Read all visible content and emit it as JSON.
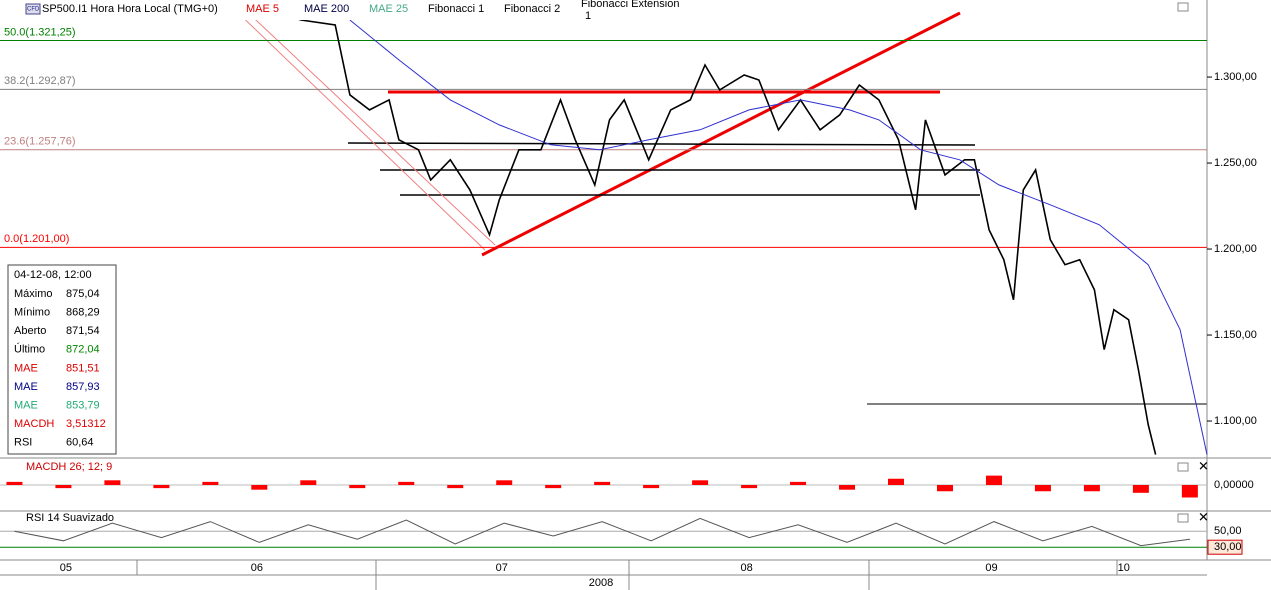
{
  "toolbar": {
    "symbol": "CFD",
    "title": "SP500.I1 Hora Hora Local (TMG+0)",
    "items": [
      "MAE 5",
      "MAE 200",
      "MAE 25",
      "Fibonacci 1",
      "Fibonacci 2",
      "Fibonacci Extension",
      "1"
    ]
  },
  "info_panel": {
    "header": "04-12-08, 12:00",
    "rows": [
      {
        "label": "Máximo",
        "value": "875,04"
      },
      {
        "label": "Mínimo",
        "value": "868,29"
      },
      {
        "label": "Aberto",
        "value": "871,54"
      },
      {
        "label": "Último",
        "value": "872,04"
      },
      {
        "label": "MAE",
        "value": "851,51"
      },
      {
        "label": "MAE",
        "value": "857,93"
      },
      {
        "label": "MAE",
        "value": "853,79"
      },
      {
        "label": "MACDH",
        "value": "3,51312"
      },
      {
        "label": "RSI",
        "value": "60,64"
      }
    ]
  },
  "chart_data": [
    {
      "type": "line",
      "x_label": "2008",
      "xlim": [
        5.441,
        10.37
      ],
      "ylim": [
        1078.5,
        1344.8
      ],
      "xticks": [
        {
          "value": 5.71,
          "label": "05"
        },
        {
          "value": 6.49,
          "label": "06"
        },
        {
          "value": 7.49,
          "label": "07"
        },
        {
          "value": 8.49,
          "label": "08"
        },
        {
          "value": 9.49,
          "label": "09"
        },
        {
          "value": 10.03,
          "label": "10"
        }
      ],
      "yticks": [
        {
          "value": 1100,
          "label": "1.100,00"
        },
        {
          "value": 1150,
          "label": "1.150,00"
        },
        {
          "value": 1200,
          "label": "1.200,00"
        },
        {
          "value": 1250,
          "label": "1.250,00"
        },
        {
          "value": 1300,
          "label": "1.300,00"
        }
      ],
      "levels": [
        {
          "label": "50.0(1.321,25)",
          "value": 1321.25,
          "color": "#008000"
        },
        {
          "label": "38.2(1.292,87)",
          "value": 1292.87,
          "color": "#808080"
        },
        {
          "label": "23.6(1.257,76)",
          "value": 1257.76,
          "color": "#c08080"
        },
        {
          "label": "0.0(1.201,00)",
          "value": 1201,
          "color": "#ff0000"
        }
      ],
      "series": [
        {
          "name": "SP500.I1 Hora Hora Local (TMG+0)",
          "color": "#000000",
          "x": [
            6.36,
            6.5,
            6.67,
            6.81,
            6.87,
            6.95,
            7.03,
            7.07,
            7.15,
            7.2,
            7.28,
            7.36,
            7.44,
            7.48,
            7.56,
            7.65,
            7.73,
            7.79,
            7.87,
            7.93,
            7.99,
            8.09,
            8.18,
            8.26,
            8.32,
            8.38,
            8.48,
            8.54,
            8.62,
            8.71,
            8.79,
            8.87,
            8.95,
            9.03,
            9.11,
            9.18,
            9.22,
            9.3,
            9.38,
            9.42,
            9.48,
            9.54,
            9.58,
            9.62,
            9.67,
            9.73,
            9.79,
            9.85,
            9.91,
            9.95,
            9.99,
            10.05,
            10.09,
            10.13,
            10.16
          ],
          "values": [
            1341.9,
            1340.2,
            1333.2,
            1330.3,
            1289.6,
            1280.9,
            1286.7,
            1263.5,
            1257.7,
            1240.2,
            1251.9,
            1234.4,
            1208.3,
            1228.6,
            1257.7,
            1257.7,
            1286.7,
            1263.5,
            1237.3,
            1275.1,
            1286.7,
            1251.9,
            1280.9,
            1286.7,
            1307.0,
            1292.5,
            1301.2,
            1298.3,
            1269.3,
            1286.7,
            1269.3,
            1278.0,
            1295.4,
            1286.7,
            1263.5,
            1222.8,
            1275.1,
            1243.1,
            1251.9,
            1251.9,
            1211.2,
            1193.8,
            1170.5,
            1234.4,
            1246.0,
            1205.4,
            1190.9,
            1193.8,
            1176.3,
            1141.5,
            1164.7,
            1158.9,
            1129.9,
            1097.9,
            1080.5
          ]
        },
        {
          "name": "MAE 200",
          "color": "#3030d0",
          "x": [
            6.87,
            7.07,
            7.28,
            7.48,
            7.69,
            7.89,
            8.09,
            8.3,
            8.5,
            8.71,
            8.91,
            9.03,
            9.2,
            9.36,
            9.52,
            9.73,
            9.93,
            10.13,
            10.26,
            10.37
          ],
          "values": [
            1333.2,
            1310.0,
            1286.7,
            1272.2,
            1260.6,
            1257.7,
            1263.5,
            1269.3,
            1280.9,
            1286.7,
            1280.9,
            1275.1,
            1257.7,
            1251.9,
            1237.3,
            1225.7,
            1214.1,
            1190.9,
            1153.1,
            1080.5
          ]
        }
      ]
    },
    {
      "type": "bar",
      "title": "MACDH 26; 12; 9",
      "color": "#ff0000",
      "ylim": [
        -8,
        8
      ],
      "xlim": [
        5.441,
        10.37
      ],
      "yticks": [
        {
          "value": 0,
          "label": "0,00000"
        }
      ],
      "x": [
        5.5,
        5.7,
        5.9,
        6.1,
        6.3,
        6.5,
        6.7,
        6.9,
        7.1,
        7.3,
        7.5,
        7.7,
        7.9,
        8.1,
        8.3,
        8.5,
        8.7,
        8.9,
        9.1,
        9.3,
        9.5,
        9.7,
        9.9,
        10.1,
        10.3
      ],
      "values": [
        1,
        -1,
        1.5,
        -1,
        1,
        -1.5,
        1.5,
        -1,
        1,
        -1,
        1.5,
        -1,
        1,
        -1,
        1.5,
        -1,
        1,
        -1.5,
        2,
        -2,
        3,
        -2,
        -2,
        -2.5,
        -4
      ]
    },
    {
      "type": "line",
      "title": "RSI 14 Suavizado",
      "color": "#555555",
      "ylim": [
        14,
        74
      ],
      "xlim": [
        5.441,
        10.37
      ],
      "yticks": [
        {
          "value": 50,
          "label": "50,00"
        },
        {
          "value": 30,
          "label": "30,00"
        }
      ],
      "x": [
        5.5,
        5.7,
        5.9,
        6.1,
        6.3,
        6.5,
        6.7,
        6.9,
        7.1,
        7.3,
        7.5,
        7.7,
        7.9,
        8.1,
        8.3,
        8.5,
        8.7,
        8.9,
        9.1,
        9.3,
        9.5,
        9.7,
        9.9,
        10.1,
        10.3
      ],
      "values": [
        50,
        38,
        60,
        42,
        62,
        36,
        58,
        40,
        64,
        34,
        60,
        44,
        62,
        38,
        66,
        42,
        58,
        36,
        60,
        34,
        62,
        38,
        56,
        32,
        40
      ]
    }
  ]
}
